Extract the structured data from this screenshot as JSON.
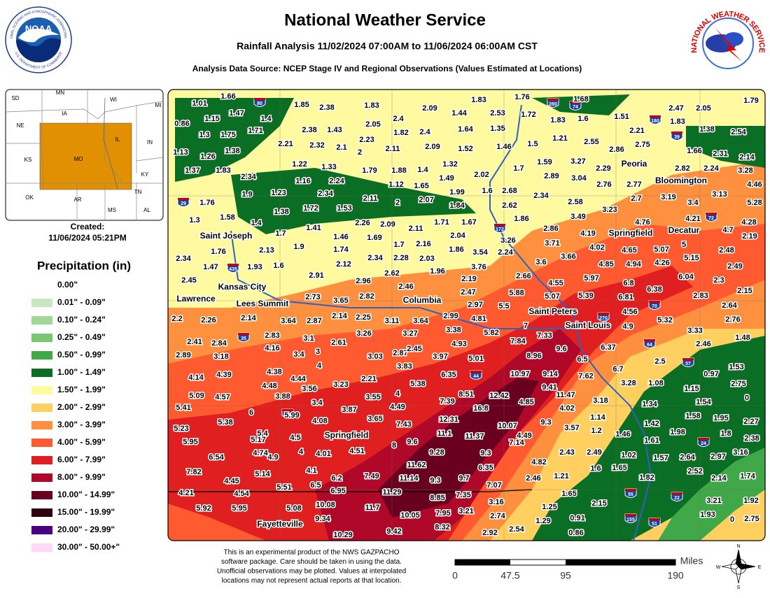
{
  "header": {
    "title": "National Weather Service",
    "subtitle": "Rainfall Analysis 11/02/2024 07:00AM to 11/06/2024 06:00AM CST",
    "source": "Analysis Data Source: NCEP Stage IV and Regional Observations (Values Estimated at Locations)"
  },
  "logos": {
    "noaa": {
      "name": "NOAA",
      "ring_top": "NATIONAL OCEANIC AND ATMOSPHERIC ADMINISTRATION",
      "ring_bottom": "U.S. DEPARTMENT OF COMMERCE"
    },
    "nws": {
      "ring": "NATIONAL WEATHER SERVICE"
    }
  },
  "inset": {
    "labels": [
      "SD",
      "MN",
      "WI",
      "MI",
      "IA",
      "NE",
      "IL",
      "IN",
      "KS",
      "MO",
      "KY",
      "OK",
      "AR",
      "TN",
      "MS",
      "AL"
    ]
  },
  "created": {
    "label": "Created:",
    "date": "11/06/2024 05:21PM"
  },
  "legend": {
    "title": "Precipitation (in)",
    "items": [
      "0.00\"",
      "0.01\" - 0.09\"",
      "0.10\" - 0.24\"",
      "0.25\" - 0.49\"",
      "0.50\" - 0.99\"",
      "1.00\" - 1.49\"",
      "1.50\" - 1.99\"",
      "2.00\" - 2.99\"",
      "3.00\" - 3.99\"",
      "4.00\" - 5.99\"",
      "6.00\" - 7.99\"",
      "8.00\" - 9.99\"",
      "10.00\" - 14.99\"",
      "15.00\" - 19.99\"",
      "20.00\" - 29.99\"",
      "30.00\" - 50.00+\""
    ],
    "colors": [
      "#ffffff",
      "#c8e8c0",
      "#a0d898",
      "#78c870",
      "#40a848",
      "#0a6e24",
      "#fffaa0",
      "#ffd060",
      "#ff9040",
      "#ff5a30",
      "#e02020",
      "#b00828",
      "#6a0020",
      "#300010",
      "#4a0080",
      "#ffd8f8"
    ]
  },
  "cities": [
    "Saint Joseph",
    "Kansas City",
    "Lawrence",
    "Lees Summit",
    "Columbia",
    "Saint Peters",
    "Saint Louis",
    "Springfield",
    "Fayetteville",
    "Peoria",
    "Bloomington",
    "Springfield",
    "Decatur"
  ],
  "shields": [
    "80",
    "280",
    "74",
    "180",
    "39",
    "29",
    "172",
    "72",
    "435",
    "270",
    "70",
    "64",
    "57",
    "35",
    "44",
    "49",
    "24",
    "55",
    "22",
    "155",
    "51"
  ],
  "stations": [
    1.01,
    1.66,
    1.85,
    2.38,
    1.83,
    2.09,
    1.44,
    2.53,
    1.83,
    1.76,
    1.72,
    1.68,
    1.79,
    2.47,
    2.05,
    0.86,
    1.15,
    1.47,
    1.4,
    2.05,
    2.4,
    1.64,
    1.35,
    1.83,
    1.6,
    1.51,
    1.83,
    1.38,
    2.54,
    1.3,
    1.75,
    1.71,
    2.38,
    1.43,
    2.23,
    1.82,
    2.4,
    2.21,
    2.75,
    1.21,
    2.55,
    1.13,
    1.26,
    1.38,
    2.21,
    2.32,
    2.1,
    2,
    2.11,
    2.09,
    1.52,
    1.46,
    1.5,
    2.86,
    1.66,
    2.31,
    2.14,
    1.37,
    1.83,
    2.34,
    1.22,
    1.33,
    1.79,
    1.88,
    1.4,
    1.32,
    2.02,
    1.7,
    1.59,
    3.27,
    2.29,
    2.82,
    2.24,
    3.28,
    1.16,
    2.24,
    1.12,
    1.65,
    1.49,
    2.89,
    3.04,
    2.76,
    2.77,
    4.46,
    1.76,
    1.9,
    1.23,
    2.34,
    2.11,
    2,
    2.07,
    1.99,
    1.6,
    2.68,
    2.34,
    2.58,
    2.7,
    3.19,
    3.4,
    3.13,
    5.28,
    1.38,
    1.72,
    1.53,
    1.84,
    2.62,
    3.23,
    1.3,
    1.58,
    1.4,
    1.41,
    2.26,
    2.09,
    2.11,
    1.71,
    1.67,
    1.86,
    3.49,
    4.76,
    4.21,
    4.28,
    1.7,
    1.46,
    1.69,
    2.04,
    3.26,
    2.86,
    4.19,
    4.7,
    2.19,
    3.71,
    1.76,
    2.13,
    1.9,
    1.74,
    1.7,
    2.16,
    1.86,
    3.54,
    2.24,
    4.02,
    4.65,
    5.07,
    5,
    2.48,
    2.34,
    2.12,
    2.34,
    2.28,
    2.03,
    3.6,
    3.66,
    4.85,
    4.94,
    4.26,
    5.15,
    1.47,
    1.93,
    1.6,
    3.76,
    2.49,
    2.45,
    2.91,
    2.62,
    1.96,
    2.66,
    6.04,
    2.3,
    2.96,
    4.55,
    5.97,
    6.8,
    2.46,
    2.19,
    6.38,
    2.15,
    2.73,
    3.65,
    2.82,
    2.47,
    5.88,
    5.07,
    5.39,
    6.81,
    2.83,
    2.97,
    5.5,
    4.56,
    2.64,
    2.2,
    2.26,
    2.14,
    3.64,
    2.87,
    2.14,
    2.25,
    3.11,
    3.64,
    2.99,
    4.81,
    5.32,
    2.76,
    7,
    4.9,
    3.33,
    3.26,
    3.27,
    3.38,
    5.82,
    7.33,
    7.84,
    2.41,
    2.84,
    2.83,
    3.1,
    2.61,
    4.16,
    4.93,
    6.37,
    2.46,
    1.48,
    2.89,
    3.18,
    3.4,
    3,
    3.03,
    2.87,
    2.45,
    3.97,
    5.01,
    8.96,
    9.6,
    6.5,
    4,
    2.5,
    1.53,
    3.83,
    4.38,
    6.35,
    10.97,
    9.14,
    7.62,
    6.7,
    0.97,
    4.14,
    4.39,
    4.44,
    2.21,
    5.38,
    3.28,
    1.08,
    1.15,
    2.75,
    4.48,
    3.56,
    3.23,
    9.41,
    5.09,
    4.57,
    3.88,
    3.55,
    4,
    8.51,
    12.42,
    11.47,
    3.18,
    1.34,
    1.54,
    0,
    3.4,
    7.39,
    4.85,
    5.41,
    6,
    5.99,
    3.87,
    4.49,
    16.8,
    4.02,
    1.58,
    1.95,
    5.38,
    4.08,
    3.65,
    12.31,
    7.43,
    10.07,
    9.3,
    1.14,
    1.42,
    2.27,
    5.23,
    5.4,
    4.5,
    11.1,
    11.37,
    4.49,
    3.57,
    1.2,
    1.46,
    1.98,
    1.8,
    2.38,
    5.95,
    5.17,
    8,
    9.6,
    7.14,
    1.61,
    4.74,
    4,
    4.01,
    4.51,
    9.28,
    9.3,
    2.43,
    2.49,
    1.02,
    1.57,
    2.64,
    2.97,
    3.16,
    6.54,
    4.9,
    11.62,
    6.35,
    4.82,
    1.6,
    1.65,
    7.82,
    5.14,
    4.1,
    6.2,
    7.49,
    11.14,
    9.3,
    9.7,
    2.52,
    1.74,
    4.45,
    2.46,
    1.21,
    1.82,
    2.14,
    4.21,
    5.51,
    6.5,
    7.07,
    4.54,
    6.95,
    11.29,
    8.85,
    7.35,
    1.65,
    3.16,
    10.08,
    11.7,
    2.15,
    3.21,
    1.92,
    5.92,
    5.95,
    5.08,
    1.25,
    2.74,
    9.34,
    10.05,
    7.95,
    3.21,
    1.29,
    0.91,
    1.93,
    0,
    2.75,
    8.32,
    10.29,
    9.42,
    2.92,
    2.54,
    0.86
  ],
  "disclaimer": [
    "This is an experimental product of the NWS GAZPACHO",
    "software package. Care should be taken in using the data.",
    "Unofficial observations may be plotted. Values at interpolated",
    "locations may not represent actual reports at that location."
  ],
  "scale": {
    "ticks": [
      "0",
      "47.5",
      "95",
      "190"
    ],
    "unit": "Miles"
  },
  "compass": [
    "N",
    "E",
    "S",
    "W"
  ]
}
